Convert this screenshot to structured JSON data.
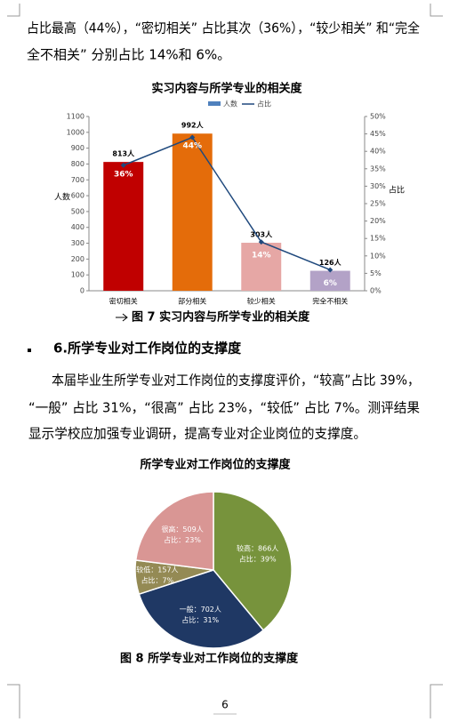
{
  "paragraph_1": {
    "lines": [
      "占比最高（44%），“密切相关” 占比其次（36%），“较少相关” 和“完全",
      "全不相关” 分别占比 14%和 6%。"
    ]
  },
  "chart_1": {
    "chart_data": {
      "type": "bar_line",
      "title": "实习内容与所学专业的相关度",
      "categories": [
        "密切相关",
        "部分相关",
        "较少相关",
        "完全不相关"
      ],
      "series": [
        {
          "name": "人数",
          "color": "#4f81bd",
          "bar_colors": [
            "#c00000",
            "#e46c0a",
            "#e6a7a5",
            "#b3a2c7"
          ],
          "values": [
            813,
            992,
            303,
            126
          ],
          "value_labels": [
            "813人",
            "992人",
            "303人",
            "126人"
          ]
        },
        {
          "name": "占比",
          "color": "#1f497d",
          "axis": "y2",
          "values": [
            36,
            44,
            14,
            6
          ],
          "value_labels": [
            "36%",
            "44%",
            "14%",
            "6%"
          ]
        }
      ],
      "ylabel": "人数",
      "y2label": "占比",
      "ylim": [
        0,
        1100
      ],
      "yticks": [
        0,
        100,
        200,
        300,
        400,
        500,
        600,
        700,
        800,
        900,
        1000,
        1100
      ],
      "y2lim": [
        0,
        50
      ],
      "y2ticks": [
        {
          "value": 0,
          "label": "0%"
        },
        {
          "value": 5,
          "label": "5%"
        },
        {
          "value": 10,
          "label": "10%"
        },
        {
          "value": 15,
          "label": "15%"
        },
        {
          "value": 20,
          "label": "20%"
        },
        {
          "value": 25,
          "label": "25%"
        },
        {
          "value": 30,
          "label": "30%"
        },
        {
          "value": 35,
          "label": "35%"
        },
        {
          "value": 40,
          "label": "40%"
        },
        {
          "value": 45,
          "label": "45%"
        },
        {
          "value": 50,
          "label": "50%"
        }
      ],
      "legend": "top"
    }
  },
  "caption_1": "图 7  实习内容与所学专业的相关度",
  "heading": "6.所学专业对工作岗位的支撑度",
  "paragraph_2": {
    "lines": [
      "本届毕业生所学专业对工作岗位的支撑度评价，“较高”占比 39%，",
      "“一般” 占比 31%，“很高” 占比 23%，“较低” 占比 7%。测评结果",
      "显示学校应加强专业调研，提高专业对企业岗位的支撑度。"
    ]
  },
  "chart_2": {
    "chart_data": {
      "type": "pie",
      "title": "所学专业对工作岗位的支撑度",
      "values": [
        39,
        31,
        7,
        23
      ],
      "value_labels": [
        "占比：39%",
        "占比：31%",
        "占比：7%",
        "占比：23%"
      ],
      "counts": [
        866,
        702,
        157,
        509
      ],
      "count_labels": [
        "较高：866人",
        "一般：702人",
        "较低：157人",
        "很高：509人"
      ],
      "colors": [
        "#77933c",
        "#1f3864",
        "#948a54",
        "#d99694"
      ]
    }
  },
  "caption_2": "图 8  所学专业对工作岗位的支撑度",
  "page_number": "6"
}
